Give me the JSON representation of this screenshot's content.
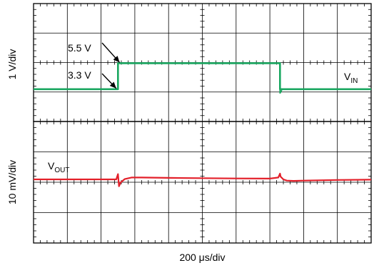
{
  "chart_data": [
    {
      "type": "line",
      "panel": "top",
      "ylabel": "1 V/div",
      "x_scale_label": "200 μs/div",
      "grid": true,
      "x_divisions": 10,
      "y_divisions": 4,
      "series": [
        {
          "name": "V_IN",
          "name_main": "V",
          "name_sub": "IN",
          "color": "#1aa760",
          "units": "V",
          "x": [
            0,
            2.5,
            2.5,
            7.3,
            7.3,
            10
          ],
          "y": [
            3.3,
            3.3,
            5.5,
            5.5,
            3.3,
            3.3
          ]
        }
      ],
      "annotations": [
        {
          "text": "5.5 V",
          "target_x": 2.55,
          "target_y": 5.5
        },
        {
          "text": "3.3 V",
          "target_x": 2.45,
          "target_y": 3.3
        }
      ]
    },
    {
      "type": "line",
      "panel": "bottom",
      "ylabel": "10 mV/div",
      "x_scale_label": "200 μs/div",
      "grid": true,
      "x_divisions": 10,
      "y_divisions": 4,
      "series": [
        {
          "name": "V_OUT",
          "name_main": "V",
          "name_sub": "OUT",
          "color": "#e3202a",
          "units": "divisions from baseline",
          "x": [
            0,
            2.45,
            2.5,
            2.53,
            2.58,
            2.7,
            2.9,
            3.2,
            4.0,
            5.0,
            6.0,
            7.0,
            7.25,
            7.3,
            7.32,
            7.4,
            7.5,
            7.7,
            8.0,
            9.0,
            10
          ],
          "y": [
            0,
            0,
            0.35,
            -0.45,
            -0.2,
            0.02,
            0.12,
            0.12,
            0.1,
            0.08,
            0.06,
            0.05,
            0.12,
            0.38,
            0.18,
            0.0,
            -0.08,
            -0.1,
            -0.08,
            -0.04,
            -0.02
          ]
        }
      ]
    }
  ]
}
